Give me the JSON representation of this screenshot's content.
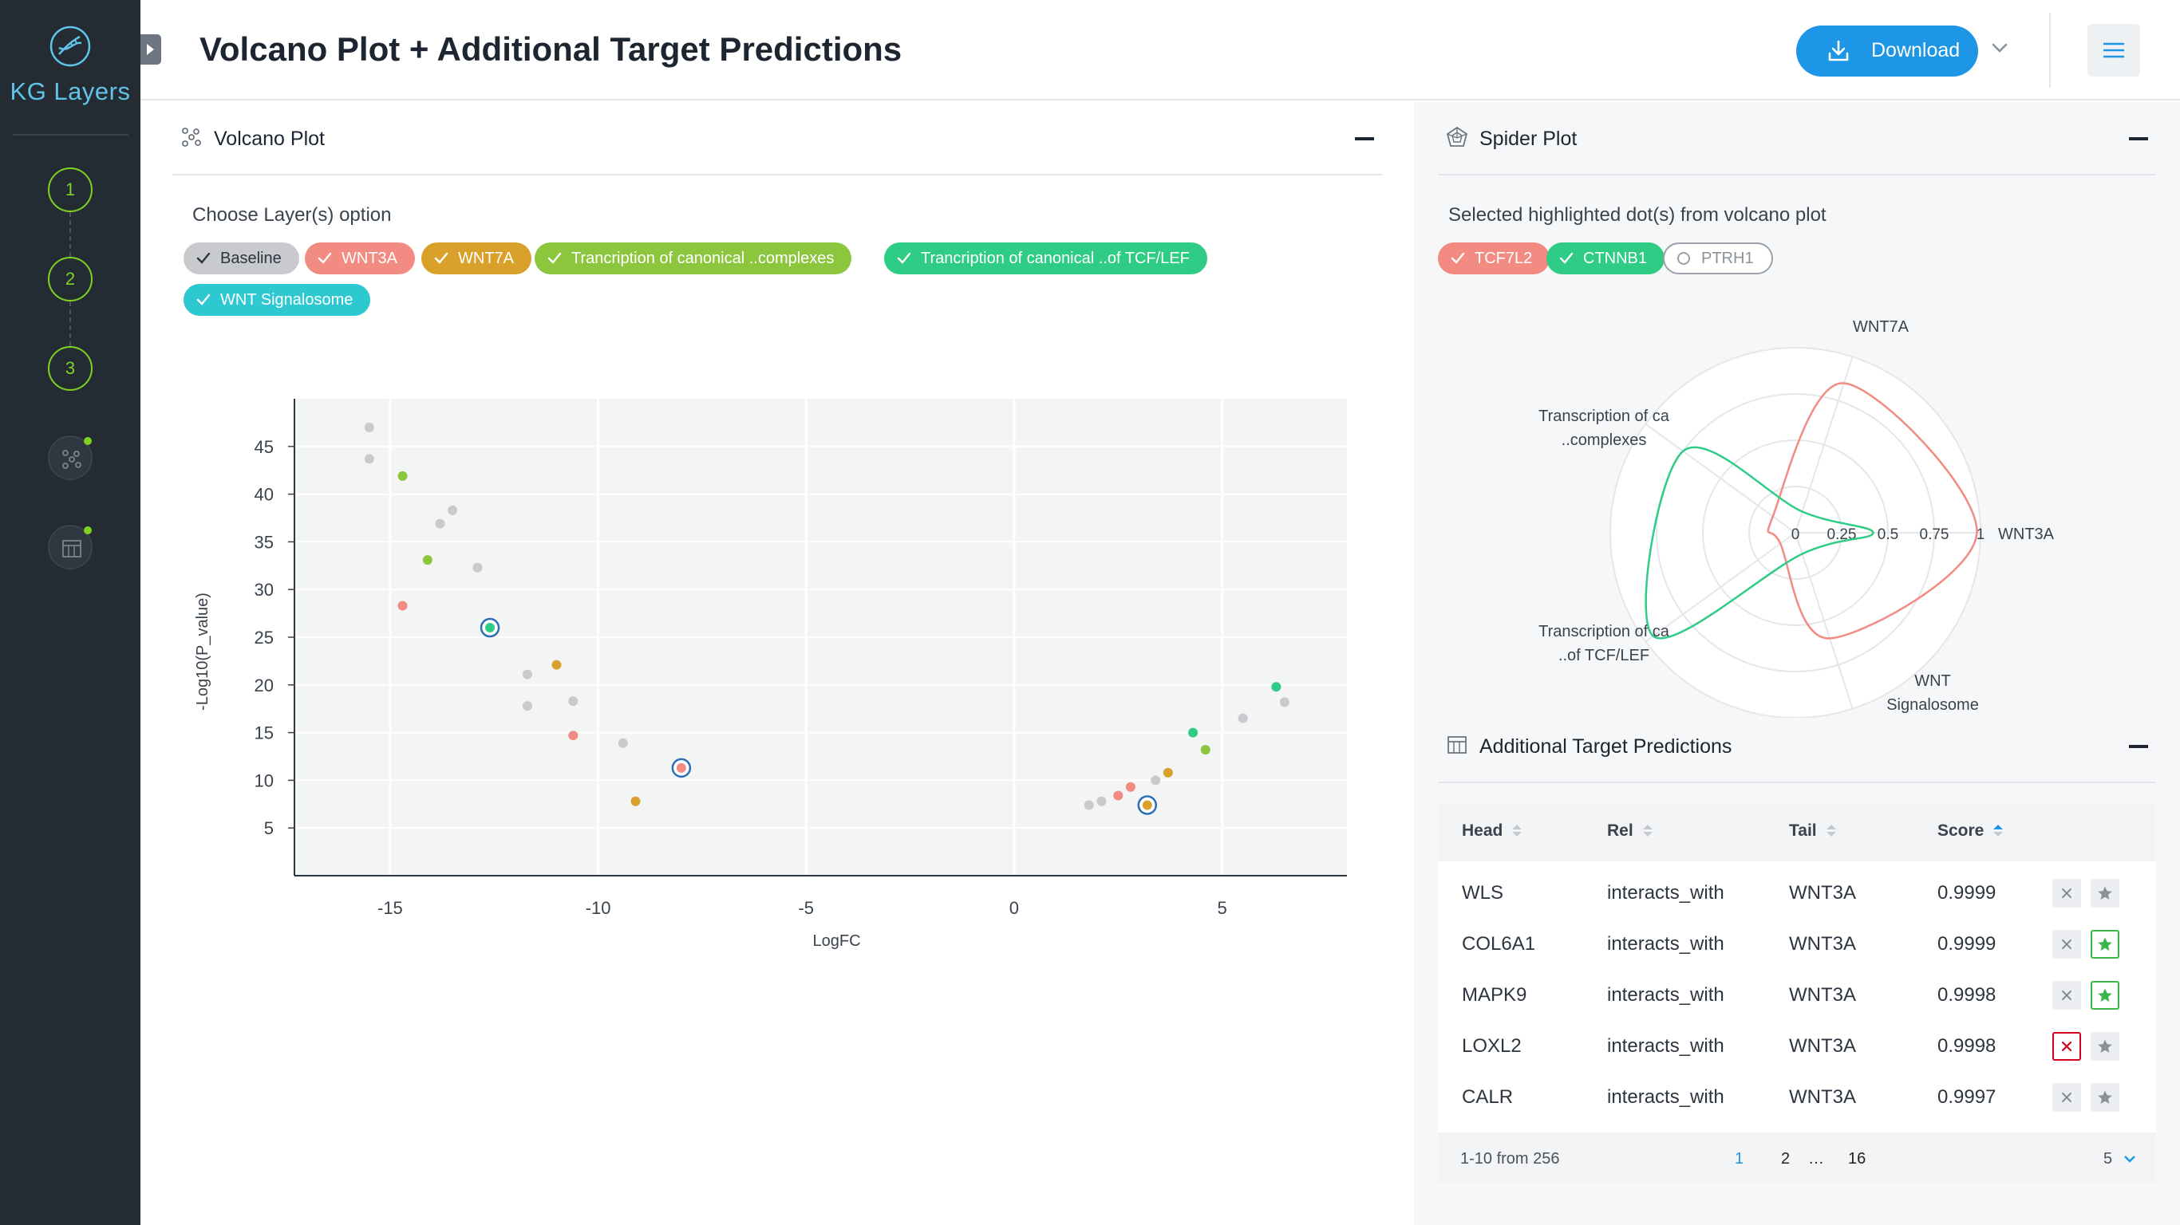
{
  "app": {
    "name": "KG Layers"
  },
  "sidebar": {
    "steps": [
      "1",
      "2",
      "3"
    ],
    "icons": [
      "scatter-plot",
      "table"
    ]
  },
  "header": {
    "title": "Volcano Plot + Additional Target Predictions",
    "download_label": "Download"
  },
  "volcano": {
    "title": "Volcano Plot",
    "layer_label": "Choose Layer(s) option",
    "chips": [
      {
        "label": "Baseline",
        "color": "#c8cacd"
      },
      {
        "label": "WNT3A",
        "color": "#f28b82"
      },
      {
        "label": "WNT7A",
        "color": "#d9a12c"
      },
      {
        "label": "Trancription of canonical ..complexes",
        "color": "#8cc63f"
      },
      {
        "label": "Trancription of canonical ..of TCF/LEF",
        "color": "#2ecc85"
      },
      {
        "label": "WNT Signalosome",
        "color": "#2ec8d0"
      }
    ]
  },
  "spider": {
    "title": "Spider Plot",
    "selected_label": "Selected highlighted dot(s) from volcano plot",
    "chips": [
      {
        "label": "TCF7L2",
        "color": "#f28b82",
        "active": true
      },
      {
        "label": "CTNNB1",
        "color": "#2ecc85",
        "active": true
      },
      {
        "label": "PTRH1",
        "color": "#9aa1a9",
        "active": false
      }
    ]
  },
  "chart_data": [
    {
      "type": "scatter",
      "xlabel": "LogFC",
      "ylabel": "-Log10(P_value)",
      "xlim": [
        -17.3,
        8
      ],
      "ylim": [
        0,
        50
      ],
      "xticks": [
        -15,
        -10,
        -5,
        0,
        5
      ],
      "yticks": [
        5,
        10,
        15,
        20,
        25,
        30,
        35,
        40,
        45
      ],
      "grid": true,
      "series": [
        {
          "name": "Baseline",
          "color": "#c8cacd",
          "x": [
            -15.5,
            -15.5,
            -13.5,
            -13.8,
            -12.9,
            -11.7,
            -11.7,
            -10.6,
            -9.4,
            1.8,
            2.1,
            3.4,
            5.5,
            6.5
          ],
          "y": [
            47,
            43.7,
            38.3,
            36.9,
            32.3,
            21.1,
            17.8,
            18.3,
            13.9,
            7.4,
            7.8,
            10,
            16.5,
            18.2
          ]
        },
        {
          "name": "WNT3A",
          "color": "#f28b82",
          "x": [
            -14.7,
            -10.6,
            2.5,
            2.8
          ],
          "y": [
            28.3,
            14.7,
            8.4,
            9.3
          ]
        },
        {
          "name": "WNT7A",
          "color": "#d9a12c",
          "x": [
            -11,
            -9.1,
            3.7
          ],
          "y": [
            22.1,
            7.8,
            10.8
          ]
        },
        {
          "name": "Trancription of canonical ..complexes",
          "color": "#8cc63f",
          "x": [
            -14.7,
            -14.1,
            4.6
          ],
          "y": [
            41.9,
            33.1,
            13.2
          ]
        },
        {
          "name": "Trancription of canonical ..of TCF/LEF",
          "color": "#2ecc85",
          "x": [
            4.3,
            6.3
          ],
          "y": [
            15,
            19.8
          ]
        },
        {
          "name": "highlighted",
          "color": "#2c6fb5",
          "x": [
            -12.6,
            -8,
            3.2
          ],
          "y": [
            26,
            11.3,
            7.4
          ],
          "fills": [
            "#2ecc85",
            "#f28b82",
            "#d9a12c"
          ]
        }
      ]
    },
    {
      "type": "radar",
      "axes": [
        "WNT3A",
        "WNT7A",
        "Transcription of ca ..complexes",
        "Transcription of ca ..of TCF/LEF",
        "WNT Signalosome"
      ],
      "radial_ticks": [
        "0",
        "0.25",
        "0.5",
        "0.75",
        "1"
      ],
      "series": [
        {
          "name": "TCF7L2",
          "color": "#f28b82",
          "values": [
            0.98,
            0.85,
            0.15,
            0.1,
            0.6
          ]
        },
        {
          "name": "CTNNB1",
          "color": "#2ecc85",
          "values": [
            0.42,
            0.12,
            0.75,
            0.95,
            0.12
          ]
        }
      ]
    }
  ],
  "predictions": {
    "title": "Additional Target Predictions",
    "columns": [
      "Head",
      "Rel",
      "Tail",
      "Score"
    ],
    "rows": [
      {
        "head": "WLS",
        "rel": "interacts_with",
        "tail": "WNT3A",
        "score": "0.9999",
        "rejected": false,
        "starred": false
      },
      {
        "head": "COL6A1",
        "rel": "interacts_with",
        "tail": "WNT3A",
        "score": "0.9999",
        "rejected": false,
        "starred": true
      },
      {
        "head": "MAPK9",
        "rel": "interacts_with",
        "tail": "WNT3A",
        "score": "0.9998",
        "rejected": false,
        "starred": true
      },
      {
        "head": "LOXL2",
        "rel": "interacts_with",
        "tail": "WNT3A",
        "score": "0.9998",
        "rejected": true,
        "starred": false
      },
      {
        "head": "CALR",
        "rel": "interacts_with",
        "tail": "WNT3A",
        "score": "0.9997",
        "rejected": false,
        "starred": false
      }
    ],
    "footer": {
      "range": "1-10 from 256",
      "pages": [
        "1",
        "2",
        "…",
        "16"
      ],
      "current_page": "1",
      "page_size": "5"
    }
  }
}
